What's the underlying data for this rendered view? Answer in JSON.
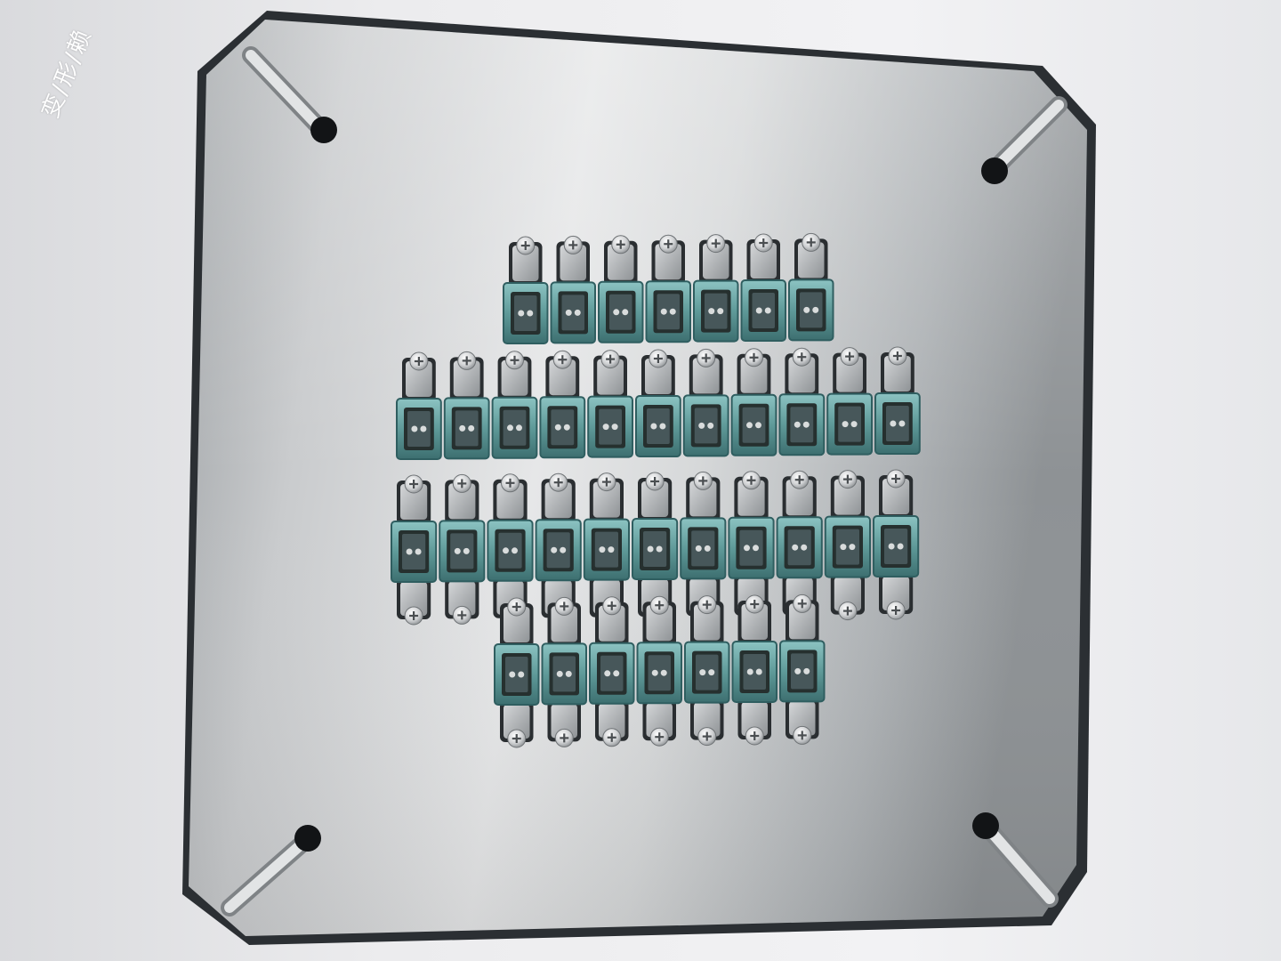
{
  "scene": {
    "description_label": "",
    "corner_marking": "变/形/赖",
    "colors": {
      "background": "#ececee",
      "plate_light": "#e9eaeb",
      "plate_mid": "#b9bcbf",
      "plate_dark": "#8f9396",
      "edge": "#2b2f33",
      "connector_teal": "#5f9a99",
      "connector_teal_dark": "#2f5e60",
      "tab_silver": "#b5b8ba",
      "screw": "#d8d9da"
    },
    "layout": {
      "rows": [
        {
          "name": "row-1",
          "connectors": 7,
          "tabs": "top"
        },
        {
          "name": "row-2",
          "connectors": 11,
          "tabs": "top"
        },
        {
          "name": "row-3",
          "connectors": 11,
          "tabs": "both"
        },
        {
          "name": "row-4",
          "connectors": 7,
          "tabs": "both"
        }
      ],
      "mounting_holes": 4
    }
  }
}
